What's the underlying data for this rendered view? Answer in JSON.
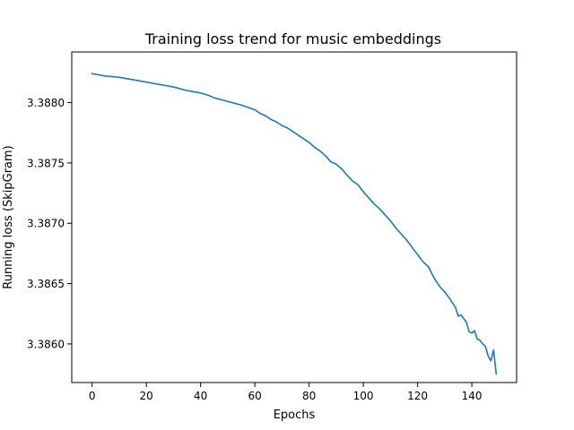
{
  "chart_data": {
    "type": "line",
    "title": "Training loss trend for music embeddings",
    "xlabel": "Epochs",
    "ylabel": "Running loss (SkipGram)",
    "xlim": [
      -7.5,
      156.5
    ],
    "ylim": [
      3.38568,
      3.38842
    ],
    "xticks": [
      0,
      20,
      40,
      60,
      80,
      100,
      120,
      140
    ],
    "xtick_labels": [
      "0",
      "20",
      "40",
      "60",
      "80",
      "100",
      "120",
      "140"
    ],
    "yticks": [
      3.386,
      3.3865,
      3.387,
      3.3875,
      3.388
    ],
    "ytick_labels": [
      "3.3860",
      "3.3865",
      "3.3870",
      "3.3875",
      "3.3880"
    ],
    "grid": false,
    "series": [
      {
        "color": "#1f77b4",
        "points": [
          [
            0,
            3.38824
          ],
          [
            5,
            3.38822
          ],
          [
            10,
            3.38821
          ],
          [
            15,
            3.38819
          ],
          [
            20,
            3.38817
          ],
          [
            25,
            3.38815
          ],
          [
            30,
            3.38813
          ],
          [
            35,
            3.3881
          ],
          [
            40,
            3.38808
          ],
          [
            43,
            3.38806
          ],
          [
            45,
            3.38804
          ],
          [
            50,
            3.38801
          ],
          [
            55,
            3.38798
          ],
          [
            60,
            3.38794
          ],
          [
            62,
            3.38791
          ],
          [
            64,
            3.38789
          ],
          [
            66,
            3.38786
          ],
          [
            68,
            3.38784
          ],
          [
            70,
            3.38781
          ],
          [
            72,
            3.38779
          ],
          [
            74,
            3.38776
          ],
          [
            76,
            3.38773
          ],
          [
            78,
            3.3877
          ],
          [
            80,
            3.38767
          ],
          [
            82,
            3.38763
          ],
          [
            84,
            3.3876
          ],
          [
            86,
            3.38756
          ],
          [
            88,
            3.38751
          ],
          [
            90,
            3.38749
          ],
          [
            92,
            3.38745
          ],
          [
            94,
            3.3874
          ],
          [
            96,
            3.38735
          ],
          [
            98,
            3.38732
          ],
          [
            100,
            3.38726
          ],
          [
            102,
            3.38721
          ],
          [
            104,
            3.38716
          ],
          [
            106,
            3.38712
          ],
          [
            108,
            3.38707
          ],
          [
            110,
            3.38702
          ],
          [
            112,
            3.38696
          ],
          [
            114,
            3.38691
          ],
          [
            116,
            3.38686
          ],
          [
            118,
            3.3868
          ],
          [
            120,
            3.38674
          ],
          [
            122,
            3.38668
          ],
          [
            124,
            3.38664
          ],
          [
            126,
            3.38655
          ],
          [
            128,
            3.38648
          ],
          [
            130,
            3.38643
          ],
          [
            132,
            3.38637
          ],
          [
            134,
            3.3863
          ],
          [
            135,
            3.38623
          ],
          [
            136,
            3.38624
          ],
          [
            138,
            3.38618
          ],
          [
            139,
            3.3861
          ],
          [
            140,
            3.38609
          ],
          [
            141,
            3.38611
          ],
          [
            142,
            3.38604
          ],
          [
            143,
            3.38603
          ],
          [
            144,
            3.386
          ],
          [
            145,
            3.38598
          ],
          [
            146,
            3.3859
          ],
          [
            147,
            3.38586
          ],
          [
            148,
            3.38595
          ],
          [
            149,
            3.38575
          ]
        ]
      }
    ]
  }
}
